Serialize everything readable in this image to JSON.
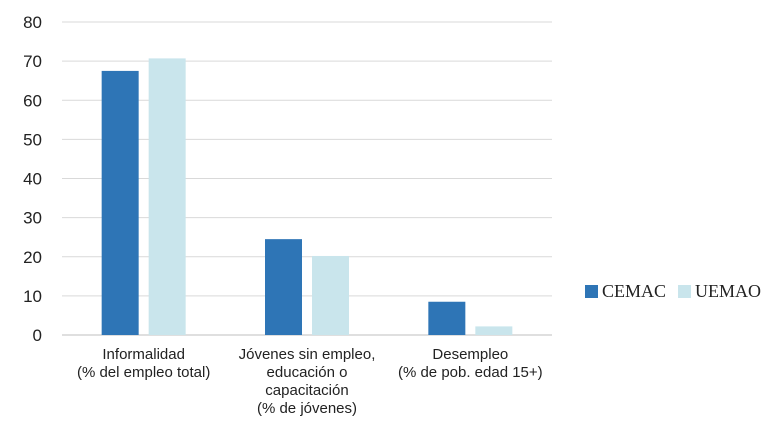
{
  "chart_data": {
    "type": "bar",
    "categories": [
      [
        "Informalidad",
        "(% del empleo total)"
      ],
      [
        "Jóvenes sin empleo,",
        "educación o",
        "capacitación",
        "(% de jóvenes)"
      ],
      [
        "Desempleo",
        "(% de pob. edad 15+)"
      ]
    ],
    "series": [
      {
        "name": "CEMAC",
        "color": "#2e75b6",
        "values": [
          67.5,
          24.5,
          8.5
        ]
      },
      {
        "name": "UEMAO",
        "color": "#c9e5ec",
        "values": [
          70.7,
          20.2,
          2.2
        ]
      }
    ],
    "ylim": [
      0,
      80
    ],
    "yticks": [
      0,
      10,
      20,
      30,
      40,
      50,
      60,
      70,
      80
    ],
    "grid": true,
    "legend": "right",
    "title": "",
    "xlabel": "",
    "ylabel": ""
  }
}
